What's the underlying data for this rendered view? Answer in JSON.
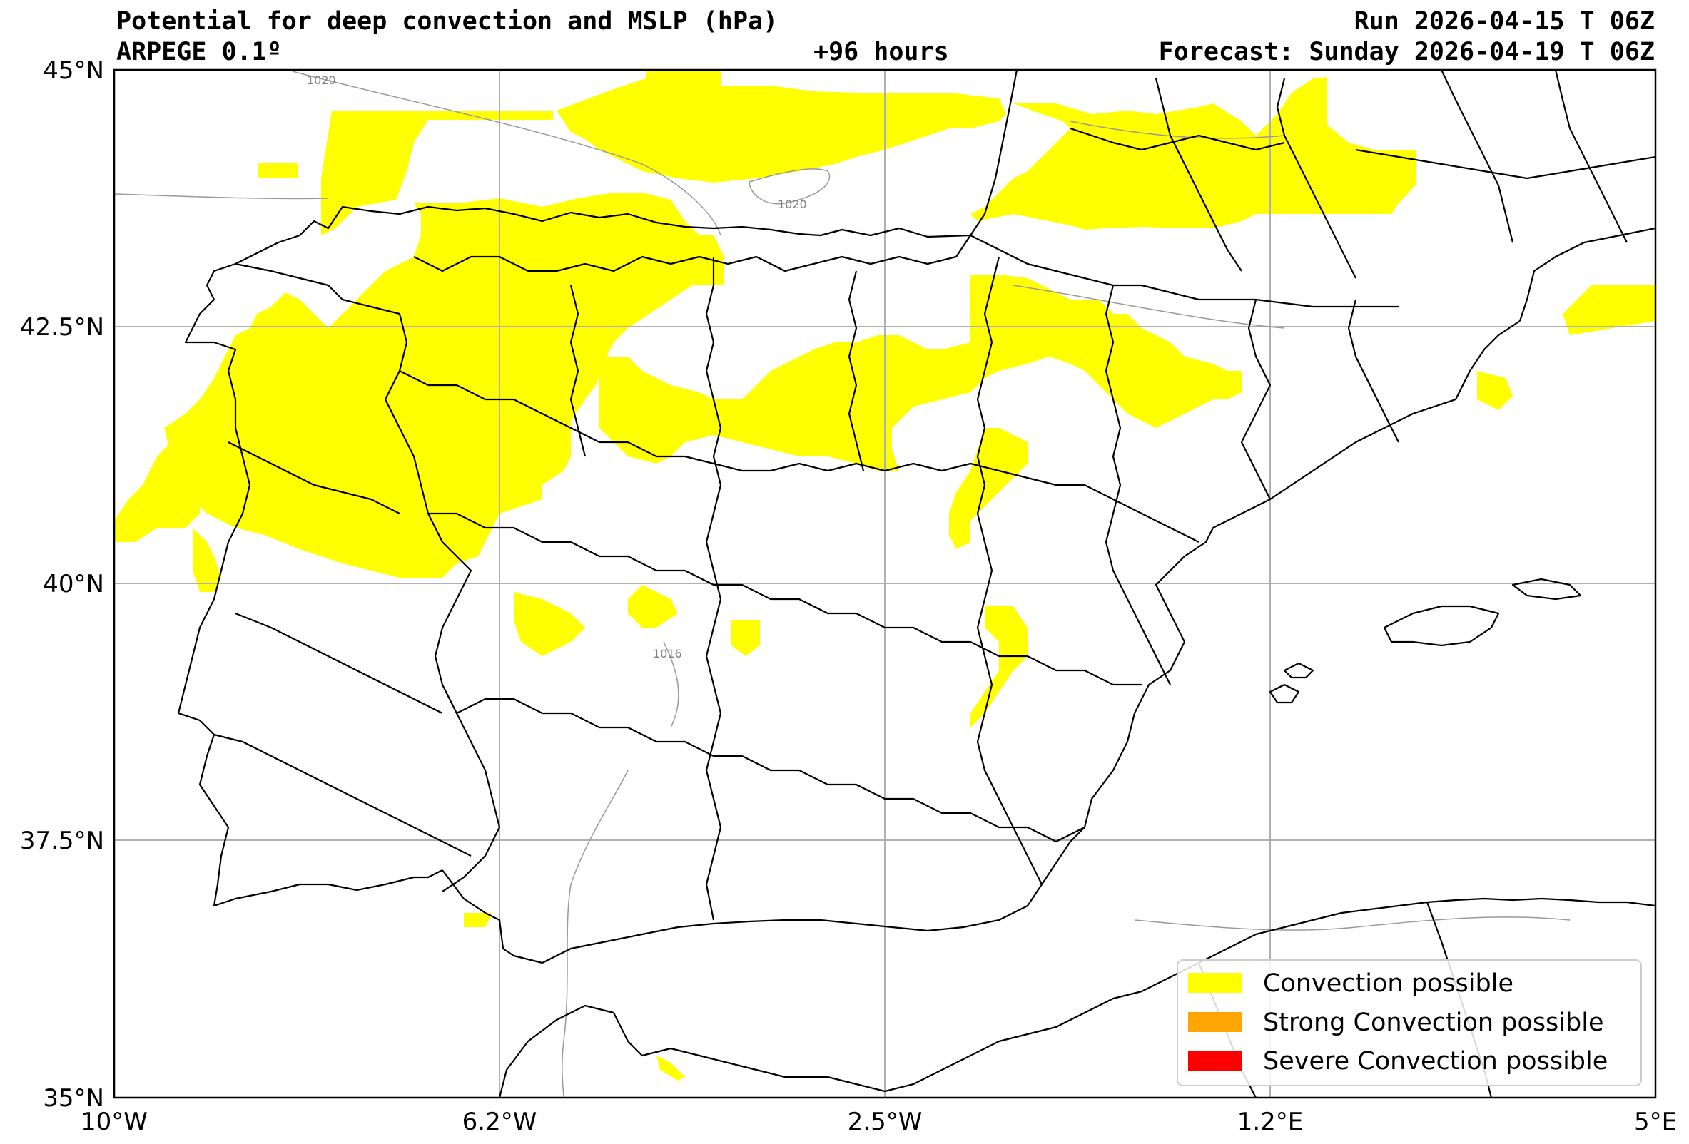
{
  "header": {
    "title": "Potential for deep convection and MSLP (hPa)",
    "model": "ARPEGE 0.1º",
    "lead": "+96 hours",
    "run": "Run 2026-04-15 T 06Z",
    "forecast": "Forecast: Sunday 2026-04-19 T 06Z"
  },
  "map": {
    "extent": {
      "lon": [
        -10,
        5
      ],
      "lat": [
        35,
        45
      ]
    },
    "lon_ticks": [
      {
        "value": -10,
        "label": "10°W"
      },
      {
        "value": -6.25,
        "label": "6.2°W"
      },
      {
        "value": -2.5,
        "label": "2.5°W"
      },
      {
        "value": 1.25,
        "label": "1.2°E"
      },
      {
        "value": 5,
        "label": "5°E"
      }
    ],
    "lat_ticks": [
      {
        "value": 45,
        "label": "45°N"
      },
      {
        "value": 42.5,
        "label": "42.5°N"
      },
      {
        "value": 40,
        "label": "40°N"
      },
      {
        "value": 37.5,
        "label": "37.5°N"
      },
      {
        "value": 35,
        "label": "35°N"
      }
    ],
    "isobar_labels": [
      "1020",
      "1020",
      "1016"
    ],
    "colors": {
      "convection": "#ffff00",
      "strong": "#ffa500",
      "severe": "#ff0000",
      "isobar": "#999999",
      "border": "#000000",
      "grid": "#b0b0b0"
    }
  },
  "legend": {
    "items": [
      {
        "label": "Convection possible",
        "color": "#ffff00"
      },
      {
        "label": "Strong Convection possible",
        "color": "#ffa500"
      },
      {
        "label": "Severe Convection possible",
        "color": "#ff0000"
      }
    ]
  }
}
